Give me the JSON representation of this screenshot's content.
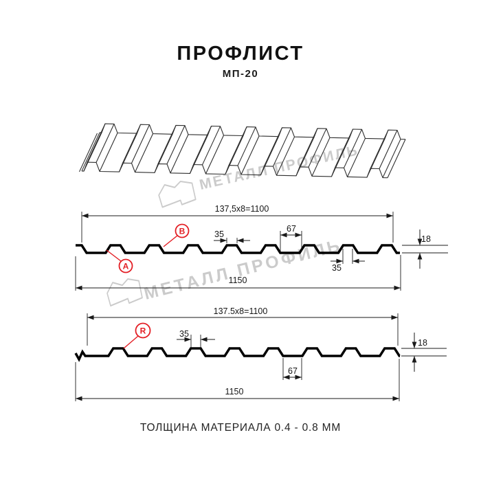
{
  "header": {
    "title": "ПРОФЛИСТ",
    "subtitle": "МП-20"
  },
  "watermark": {
    "brand": "МЕТАЛЛ ПРОФИЛЬ"
  },
  "colors": {
    "red": "#e31e24",
    "line": "#1a1a1a",
    "watermark": "#cbcbcb"
  },
  "profile_top": {
    "pitch_formula": "137,5x8=1100",
    "crest_top_width": "35",
    "valley_width": "67",
    "height": "18",
    "crest_base_width": "35",
    "overall_width": "1150",
    "marker_a": "А",
    "marker_b": "В"
  },
  "profile_bottom": {
    "pitch_formula": "137.5x8=1100",
    "crest_top_width": "35",
    "valley_width": "67",
    "height": "18",
    "overall_width": "1150",
    "marker_r": "R"
  },
  "footer": {
    "thickness_note": "ТОЛЩИНА МАТЕРИАЛА 0.4 - 0.8 ММ"
  }
}
